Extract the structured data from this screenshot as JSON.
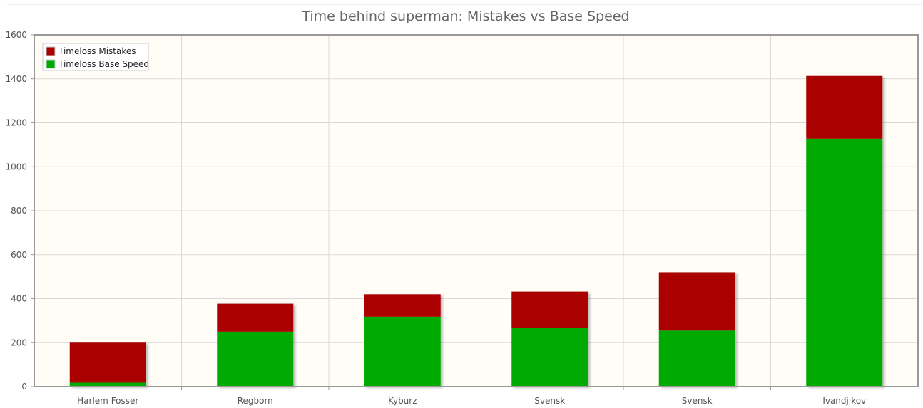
{
  "chart_data": {
    "type": "bar",
    "stacked": true,
    "title": "Time behind superman: Mistakes vs Base Speed",
    "categories": [
      "Harlem Fosser",
      "Regborn",
      "Kyburz",
      "Svensk",
      "Svensk",
      "Ivandjikov"
    ],
    "series": [
      {
        "name": "Timeloss Base Speed",
        "values": [
          18,
          250,
          318,
          268,
          255,
          1128
        ],
        "color": "#00aa00"
      },
      {
        "name": "Timeloss Mistakes",
        "values": [
          182,
          127,
          102,
          164,
          265,
          285
        ],
        "color": "#aa0000"
      }
    ],
    "legend_order": [
      "Timeloss Mistakes",
      "Timeloss Base Speed"
    ],
    "legend_position": "top-left",
    "ylim": [
      0,
      1600
    ],
    "yticks": [
      0,
      200,
      400,
      600,
      800,
      1000,
      1200,
      1400,
      1600
    ],
    "grid": true,
    "plot_background": "#fffdf6",
    "grid_color": "#d9d9d9",
    "axis_color": "#999999"
  }
}
